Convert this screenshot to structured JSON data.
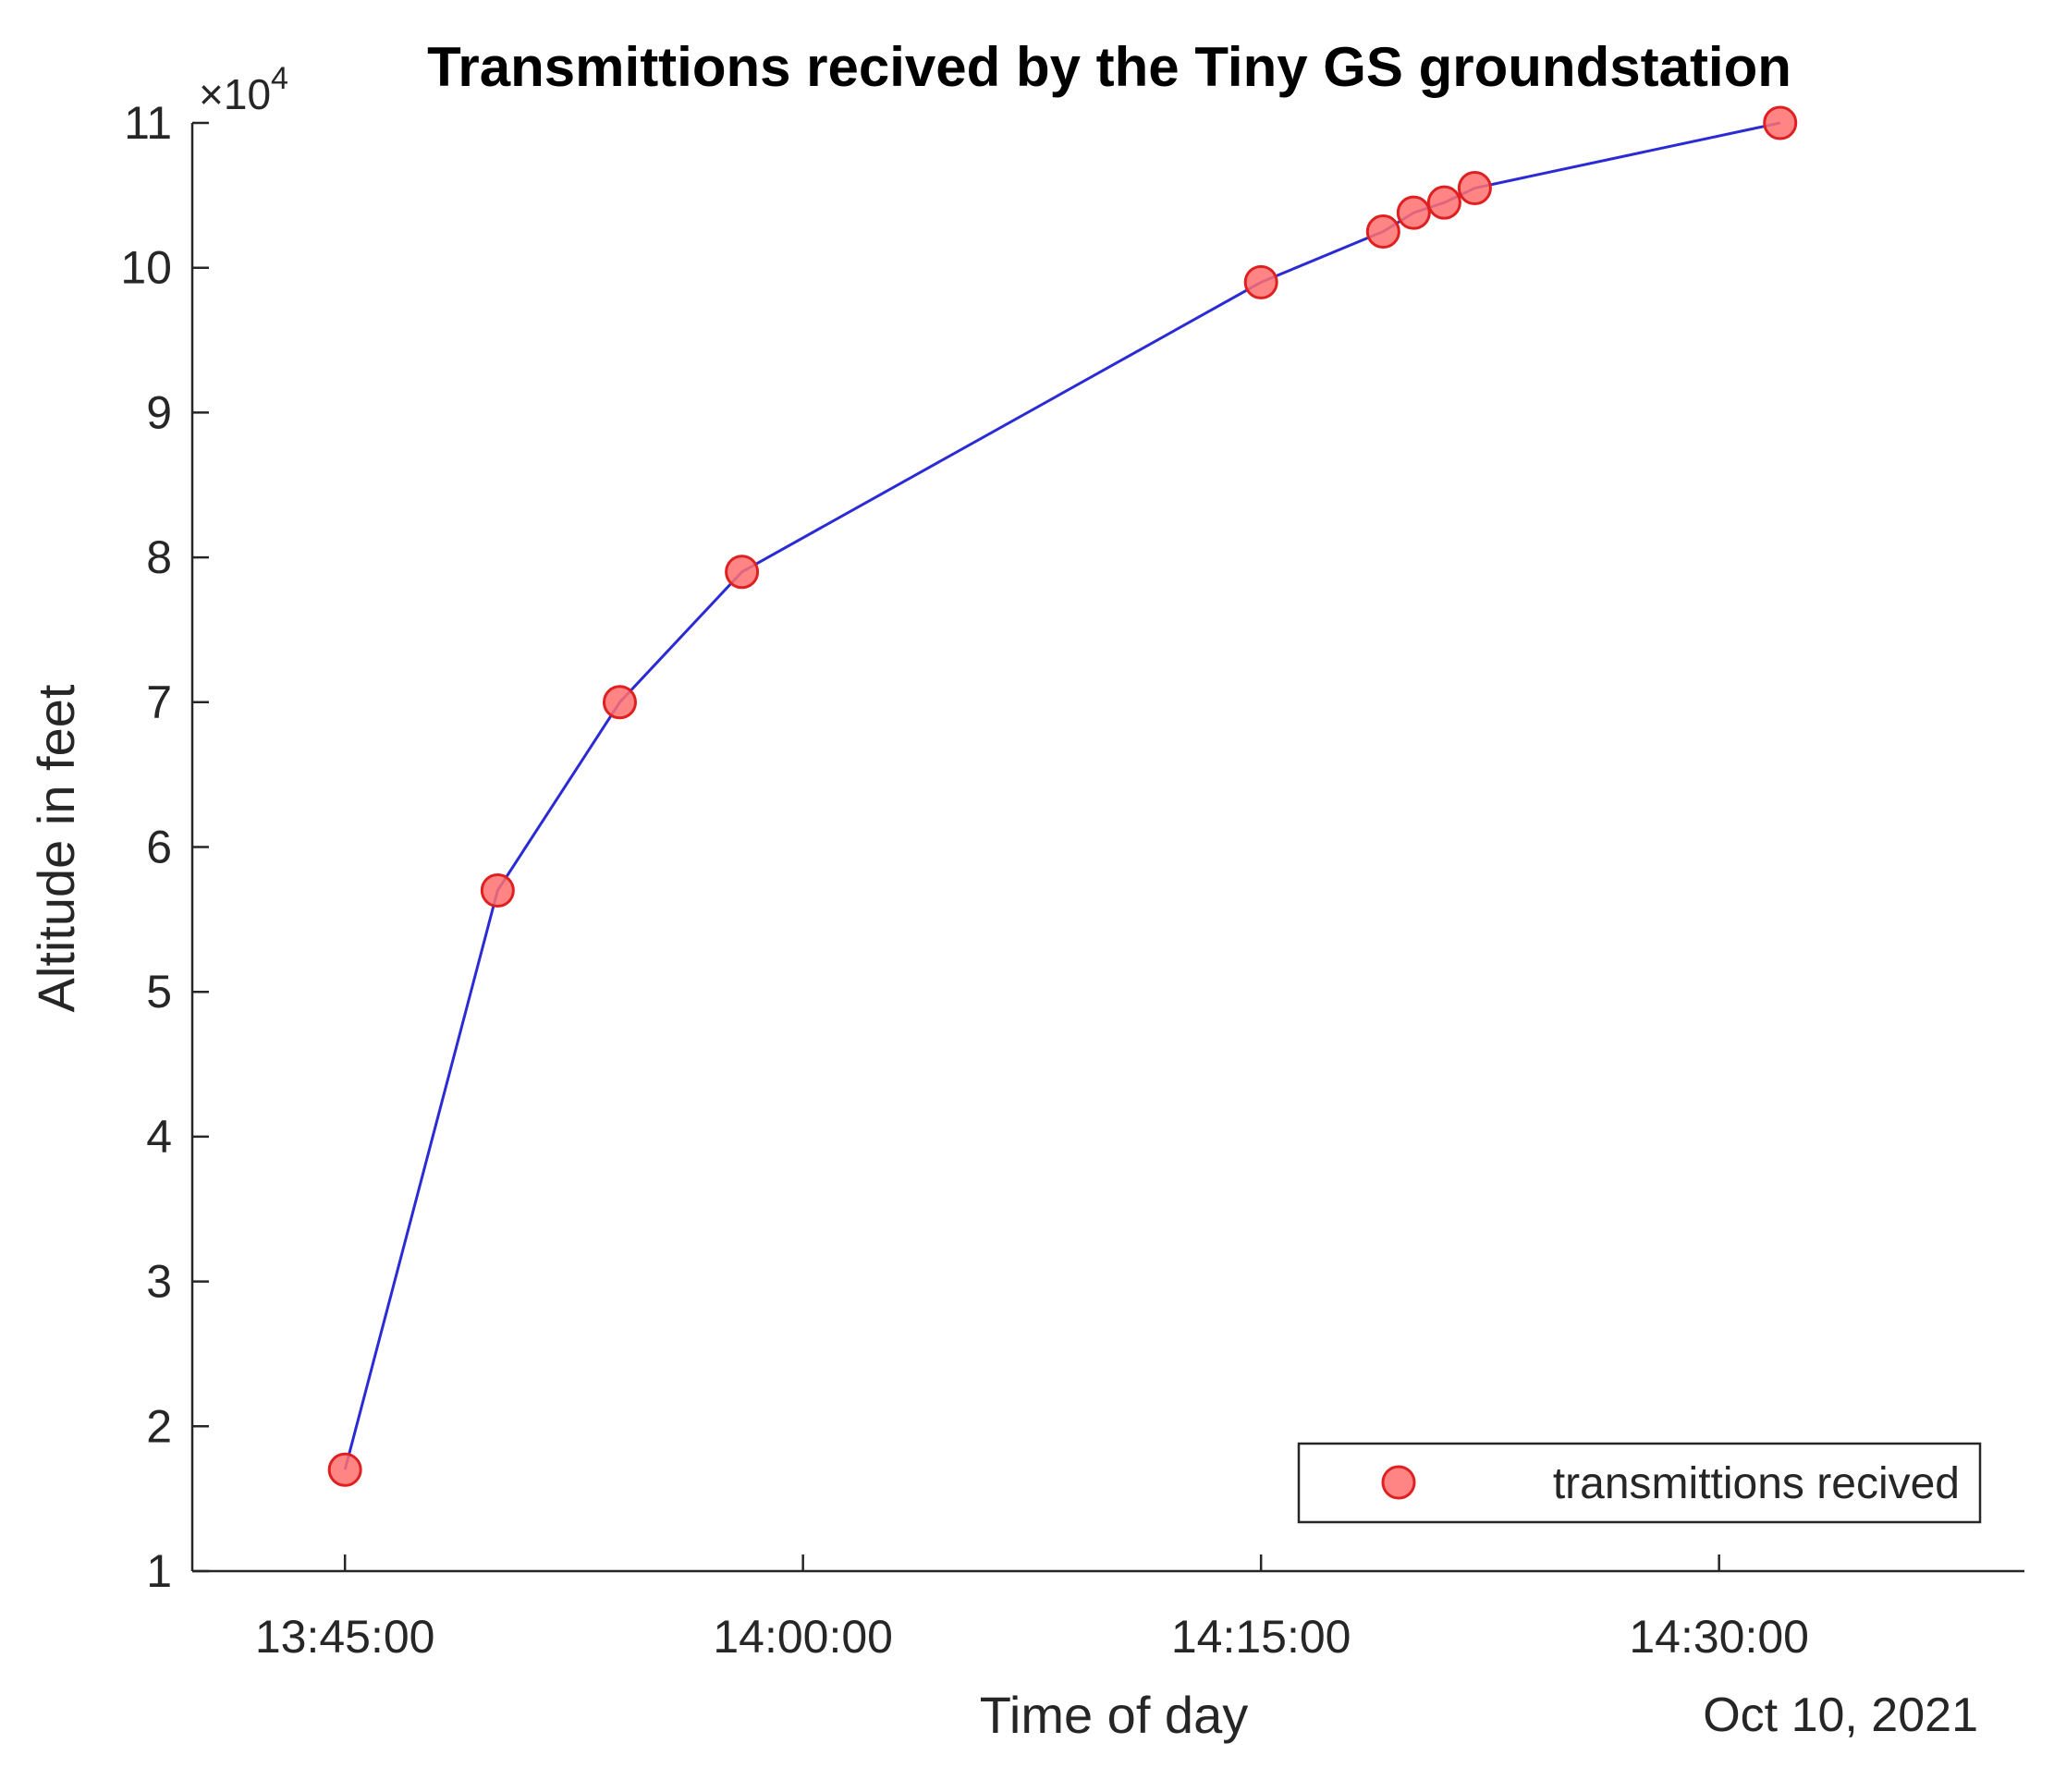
{
  "chart_data": {
    "type": "scatter",
    "title": "Transmittions recived by the Tiny GS groundstation",
    "xlabel": "Time of day",
    "ylabel": "Altitude in feet",
    "y_exponent_label": "×10",
    "y_exponent_power": "4",
    "date_label": "Oct 10, 2021",
    "date": "2021-10-10",
    "xlim": [
      "13:40:00",
      "14:40:00"
    ],
    "ylim": [
      10000,
      110000
    ],
    "x_ticks": [
      "13:45:00",
      "14:00:00",
      "14:15:00",
      "14:30:00"
    ],
    "y_ticks": [
      1,
      2,
      3,
      4,
      5,
      6,
      7,
      8,
      9,
      10,
      11
    ],
    "y_tick_scale": 10000,
    "grid": false,
    "legend_position": "bottom-right",
    "series": [
      {
        "name": "transmittions recived",
        "line_color": "#2b2bd6",
        "marker_fill": "#ff7070",
        "marker_edge": "#e02020",
        "points": [
          {
            "x": "13:45:00",
            "y": 17000
          },
          {
            "x": "13:50:00",
            "y": 57000
          },
          {
            "x": "13:54:00",
            "y": 70000
          },
          {
            "x": "13:58:00",
            "y": 79000
          },
          {
            "x": "14:15:00",
            "y": 99000
          },
          {
            "x": "14:19:00",
            "y": 102500
          },
          {
            "x": "14:20:00",
            "y": 103800
          },
          {
            "x": "14:21:00",
            "y": 104500
          },
          {
            "x": "14:22:00",
            "y": 105500
          },
          {
            "x": "14:32:00",
            "y": 110000
          }
        ]
      }
    ]
  }
}
